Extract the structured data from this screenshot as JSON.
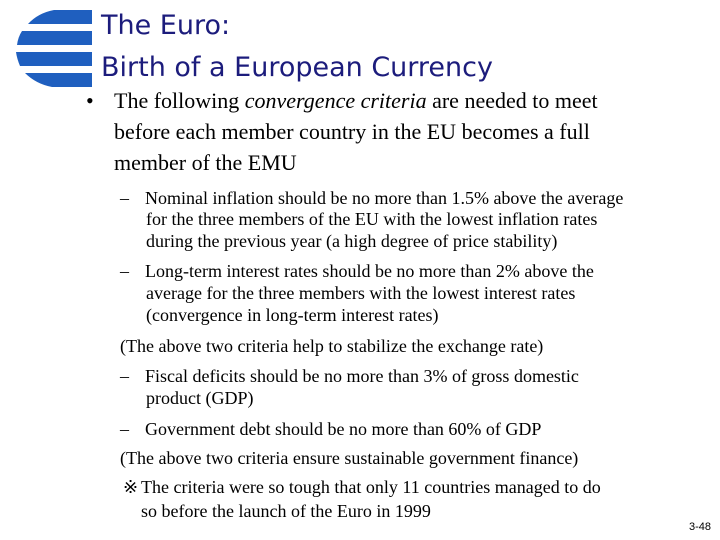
{
  "header": {
    "title_lines": [
      "The Euro:",
      "Birth of a European Currency"
    ]
  },
  "bullet": {
    "marker": "•",
    "first_line": {
      "before": "The following ",
      "emphasis": "convergence criteria",
      "after": " are needed to meet"
    },
    "more_lines": [
      "before each member country in the EU becomes a full",
      "member of the EMU"
    ]
  },
  "items": [
    {
      "marker": "–",
      "lines": [
        "Nominal inflation should be no more than 1.5% above the average",
        "for the three members of the EU with the lowest inflation rates",
        "during the previous year (a high degree of price stability)"
      ]
    },
    {
      "marker": "–",
      "lines": [
        "Long-term interest rates should be no more than 2% above the",
        "average for the three members with the lowest interest rates",
        "(convergence in long-term interest rates)"
      ]
    },
    {
      "lines": [
        "(The above two criteria help to stabilize the exchange rate)"
      ]
    },
    {
      "marker": "–",
      "lines": [
        "Fiscal deficits should be no more than 3% of gross domestic",
        "product (GDP)"
      ]
    },
    {
      "marker": "–",
      "lines": [
        "Government debt should be no more than 60% of GDP"
      ]
    },
    {
      "lines": [
        "(The above two criteria ensure sustainable government finance)"
      ]
    },
    {
      "marker": "※",
      "lines": [
        "The criteria were so tough that only 11 countries managed to do",
        "so before the launch of the Euro in 1999"
      ]
    }
  ],
  "page_number": "3-48"
}
